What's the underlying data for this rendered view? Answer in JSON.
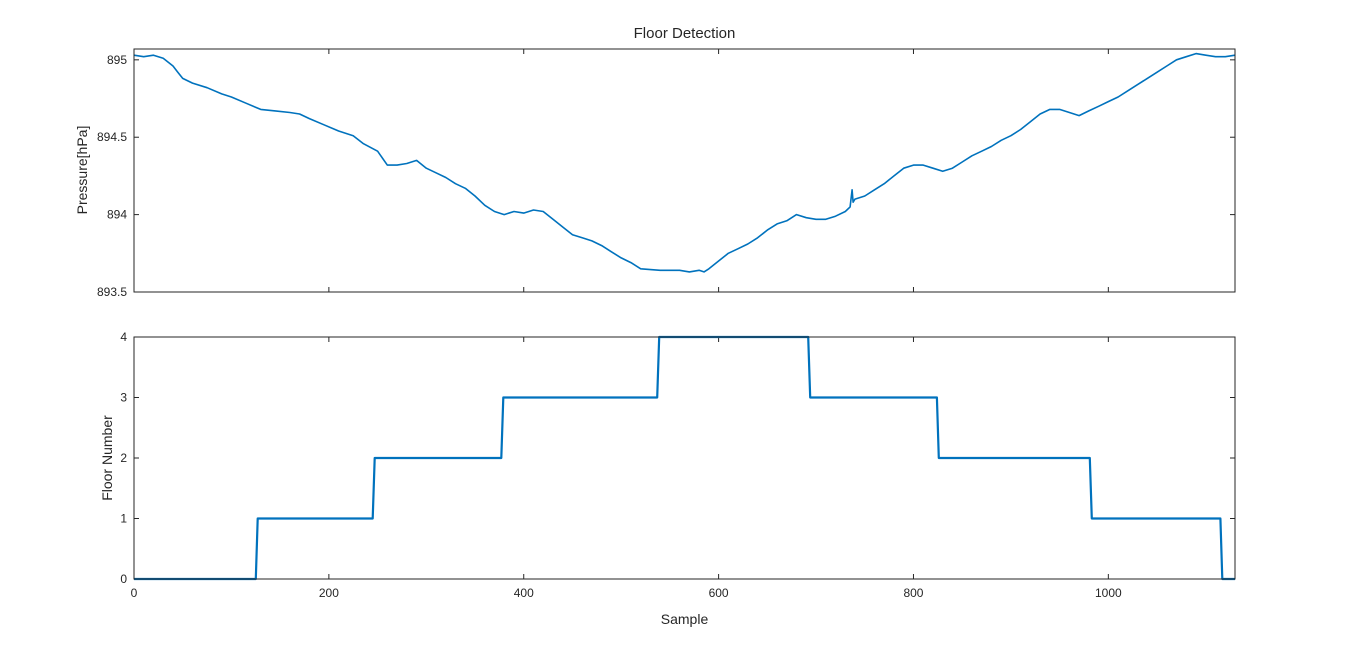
{
  "chart_data": [
    {
      "type": "line",
      "title": "Floor Detection",
      "xlabel": "",
      "ylabel": "Pressure[hPa]",
      "xlim": [
        0,
        1130
      ],
      "ylim": [
        893.5,
        895.07
      ],
      "xticks": [
        0,
        200,
        400,
        600,
        800,
        1000
      ],
      "yticks": [
        893.5,
        894,
        894.5,
        895
      ],
      "ytick_labels": [
        "893.5",
        "894",
        "894.5",
        "895"
      ],
      "xtick_labels_visible": false,
      "grid": false,
      "series": [
        {
          "color": "#0072BD",
          "x": [
            0,
            10,
            20,
            30,
            40,
            45,
            50,
            60,
            75,
            90,
            100,
            115,
            130,
            145,
            160,
            170,
            180,
            195,
            210,
            225,
            235,
            250,
            260,
            270,
            280,
            290,
            300,
            310,
            320,
            330,
            340,
            350,
            360,
            370,
            380,
            390,
            400,
            410,
            420,
            430,
            440,
            450,
            460,
            470,
            480,
            490,
            500,
            510,
            520,
            540,
            550,
            560,
            570,
            580,
            585,
            590,
            600,
            610,
            620,
            630,
            640,
            650,
            660,
            670,
            680,
            690,
            700,
            710,
            720,
            730,
            735,
            737,
            738,
            740,
            750,
            760,
            770,
            780,
            790,
            800,
            810,
            820,
            830,
            840,
            850,
            860,
            870,
            880,
            890,
            900,
            910,
            920,
            930,
            940,
            950,
            960,
            970,
            980,
            990,
            1000,
            1010,
            1020,
            1030,
            1040,
            1050,
            1060,
            1070,
            1080,
            1090,
            1100,
            1110,
            1120,
            1130
          ],
          "y": [
            895.03,
            895.02,
            895.03,
            895.01,
            894.96,
            894.92,
            894.88,
            894.85,
            894.82,
            894.78,
            894.76,
            894.72,
            894.68,
            894.67,
            894.66,
            894.65,
            894.62,
            894.58,
            894.54,
            894.51,
            894.46,
            894.41,
            894.32,
            894.32,
            894.33,
            894.35,
            894.3,
            894.27,
            894.24,
            894.2,
            894.17,
            894.12,
            894.06,
            894.02,
            894.0,
            894.02,
            894.01,
            894.03,
            894.02,
            893.97,
            893.92,
            893.87,
            893.85,
            893.83,
            893.8,
            893.76,
            893.72,
            893.69,
            893.65,
            893.64,
            893.64,
            893.64,
            893.63,
            893.64,
            893.63,
            893.65,
            893.7,
            893.75,
            893.78,
            893.81,
            893.85,
            893.9,
            893.94,
            893.96,
            894.0,
            893.98,
            893.97,
            893.97,
            893.99,
            894.02,
            894.05,
            894.16,
            894.08,
            894.1,
            894.12,
            894.16,
            894.2,
            894.25,
            894.3,
            894.32,
            894.32,
            894.3,
            894.28,
            894.3,
            894.34,
            894.38,
            894.41,
            894.44,
            894.48,
            894.51,
            894.55,
            894.6,
            894.65,
            894.68,
            894.68,
            894.66,
            894.64,
            894.67,
            894.7,
            894.73,
            894.76,
            894.8,
            894.84,
            894.88,
            894.92,
            894.96,
            895.0,
            895.02,
            895.04,
            895.03,
            895.02,
            895.02,
            895.03
          ]
        }
      ]
    },
    {
      "type": "line",
      "title": "",
      "xlabel": "Sample",
      "ylabel": "Floor Number",
      "xlim": [
        0,
        1130
      ],
      "ylim": [
        0,
        4
      ],
      "xticks": [
        0,
        200,
        400,
        600,
        800,
        1000
      ],
      "xtick_labels": [
        "0",
        "200",
        "400",
        "600",
        "800",
        "1000"
      ],
      "yticks": [
        0,
        1,
        2,
        3,
        4
      ],
      "ytick_labels": [
        "0",
        "1",
        "2",
        "3",
        "4"
      ],
      "grid": false,
      "series": [
        {
          "color": "#0072BD",
          "x": [
            0,
            125,
            127,
            245,
            247,
            377,
            379,
            537,
            539,
            692,
            694,
            824,
            826,
            981,
            983,
            1115,
            1117,
            1130
          ],
          "y": [
            0,
            0,
            1,
            1,
            2,
            2,
            3,
            3,
            4,
            4,
            3,
            3,
            2,
            2,
            1,
            1,
            0,
            0
          ]
        }
      ]
    }
  ]
}
